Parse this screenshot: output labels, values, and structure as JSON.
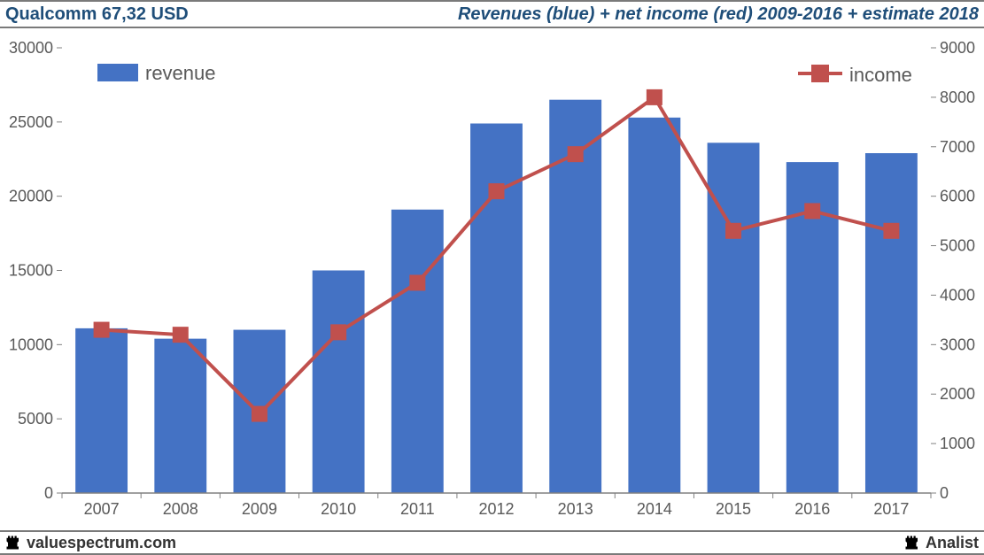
{
  "header": {
    "left": "Qualcomm 67,32 USD",
    "right": "Revenues (blue) + net income (red) 2009-2016 + estimate 2018"
  },
  "footer": {
    "left": "valuespectrum.com",
    "right": "Analist"
  },
  "chart": {
    "type": "bar+line-dual-axis",
    "background_color": "#ffffff",
    "font_family": "Arial",
    "axis_text_color": "#595959",
    "axis_text_fontsize": 18,
    "categories": [
      "2007",
      "2008",
      "2009",
      "2010",
      "2011",
      "2012",
      "2013",
      "2014",
      "2015",
      "2016",
      "2017"
    ],
    "bar": {
      "label": "revenue",
      "color": "#4472c4",
      "values": [
        11100,
        10400,
        11000,
        15000,
        19100,
        24900,
        26500,
        25300,
        23600,
        22300,
        22900
      ],
      "bar_width_ratio": 0.66
    },
    "line": {
      "label": "income",
      "color": "#c0504d",
      "line_width": 4,
      "marker_size": 9,
      "values": [
        3300,
        3200,
        1600,
        3250,
        4250,
        6100,
        6850,
        8000,
        5300,
        5700,
        5300
      ]
    },
    "y_left": {
      "min": 0,
      "max": 30000,
      "step": 5000
    },
    "y_right": {
      "min": 0,
      "max": 9000,
      "step": 1000
    },
    "tick_color": "#808080",
    "baseline_color": "#808080",
    "legend": {
      "revenue_swatch_color": "#4472c4",
      "income_swatch_color": "#c0504d",
      "text_color": "#595959",
      "fontsize": 22
    }
  }
}
